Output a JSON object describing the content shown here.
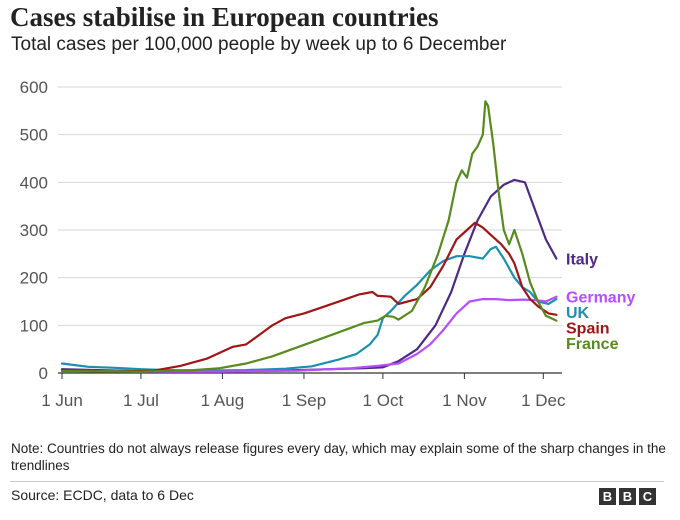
{
  "header": {
    "title": "Cases stabilise in European countries",
    "subtitle": "Total cases per 100,000 people by week up to 6 December"
  },
  "chart_data": {
    "type": "line",
    "title": "Cases stabilise in European countries",
    "subtitle": "Total cases per 100,000 people by week up to 6 December",
    "xlabel": "",
    "ylabel": "",
    "ylim": [
      0,
      600
    ],
    "yticks": [
      0,
      100,
      200,
      300,
      400,
      500,
      600
    ],
    "xlim": [
      0,
      188
    ],
    "xticks": [
      {
        "label": "1 Jun",
        "day": 0
      },
      {
        "label": "1 Jul",
        "day": 30
      },
      {
        "label": "1 Aug",
        "day": 61
      },
      {
        "label": "1 Sep",
        "day": 92
      },
      {
        "label": "1 Oct",
        "day": 122
      },
      {
        "label": "1 Nov",
        "day": 153
      },
      {
        "label": "1 Dec",
        "day": 183
      }
    ],
    "grid": true,
    "legend_placement": "right end of lines",
    "series": [
      {
        "name": "Italy",
        "color": "#4e2a84",
        "points": [
          [
            0,
            8
          ],
          [
            30,
            4
          ],
          [
            60,
            4
          ],
          [
            90,
            6
          ],
          [
            115,
            10
          ],
          [
            122,
            12
          ],
          [
            128,
            25
          ],
          [
            135,
            50
          ],
          [
            142,
            100
          ],
          [
            148,
            170
          ],
          [
            153,
            250
          ],
          [
            158,
            320
          ],
          [
            163,
            370
          ],
          [
            168,
            395
          ],
          [
            172,
            405
          ],
          [
            176,
            400
          ],
          [
            180,
            340
          ],
          [
            184,
            280
          ],
          [
            188,
            240
          ]
        ]
      },
      {
        "name": "UK",
        "color": "#1b8fb0",
        "points": [
          [
            0,
            20
          ],
          [
            10,
            13
          ],
          [
            20,
            11
          ],
          [
            30,
            8
          ],
          [
            40,
            6
          ],
          [
            55,
            5
          ],
          [
            70,
            6
          ],
          [
            85,
            9
          ],
          [
            95,
            14
          ],
          [
            105,
            28
          ],
          [
            112,
            40
          ],
          [
            117,
            60
          ],
          [
            120,
            80
          ],
          [
            122,
            115
          ],
          [
            125,
            130
          ],
          [
            130,
            160
          ],
          [
            135,
            185
          ],
          [
            140,
            215
          ],
          [
            145,
            235
          ],
          [
            150,
            245
          ],
          [
            155,
            245
          ],
          [
            160,
            240
          ],
          [
            163,
            260
          ],
          [
            165,
            265
          ],
          [
            168,
            240
          ],
          [
            172,
            200
          ],
          [
            175,
            180
          ],
          [
            178,
            170
          ],
          [
            181,
            150
          ],
          [
            185,
            145
          ],
          [
            188,
            155
          ]
        ]
      },
      {
        "name": "Germany",
        "color": "#b84dff",
        "points": [
          [
            0,
            5
          ],
          [
            30,
            3
          ],
          [
            60,
            3
          ],
          [
            90,
            5
          ],
          [
            110,
            10
          ],
          [
            120,
            15
          ],
          [
            128,
            20
          ],
          [
            135,
            40
          ],
          [
            140,
            60
          ],
          [
            145,
            90
          ],
          [
            150,
            125
          ],
          [
            155,
            150
          ],
          [
            160,
            155
          ],
          [
            165,
            155
          ],
          [
            170,
            153
          ],
          [
            175,
            154
          ],
          [
            180,
            153
          ],
          [
            184,
            150
          ],
          [
            188,
            160
          ]
        ]
      },
      {
        "name": "Spain",
        "color": "#a01515",
        "points": [
          [
            0,
            5
          ],
          [
            20,
            3
          ],
          [
            35,
            5
          ],
          [
            45,
            15
          ],
          [
            55,
            30
          ],
          [
            65,
            55
          ],
          [
            70,
            60
          ],
          [
            75,
            80
          ],
          [
            80,
            100
          ],
          [
            85,
            115
          ],
          [
            92,
            125
          ],
          [
            100,
            140
          ],
          [
            108,
            155
          ],
          [
            113,
            165
          ],
          [
            118,
            170
          ],
          [
            120,
            162
          ],
          [
            125,
            160
          ],
          [
            128,
            145
          ],
          [
            130,
            148
          ],
          [
            135,
            155
          ],
          [
            140,
            180
          ],
          [
            145,
            225
          ],
          [
            150,
            280
          ],
          [
            154,
            300
          ],
          [
            157,
            315
          ],
          [
            160,
            305
          ],
          [
            163,
            290
          ],
          [
            167,
            270
          ],
          [
            170,
            250
          ],
          [
            172,
            230
          ],
          [
            175,
            180
          ],
          [
            178,
            155
          ],
          [
            181,
            140
          ],
          [
            185,
            125
          ],
          [
            188,
            122
          ]
        ]
      },
      {
        "name": "France",
        "color": "#588b1e",
        "points": [
          [
            0,
            4
          ],
          [
            30,
            3
          ],
          [
            50,
            6
          ],
          [
            60,
            10
          ],
          [
            70,
            20
          ],
          [
            80,
            35
          ],
          [
            90,
            55
          ],
          [
            100,
            75
          ],
          [
            110,
            95
          ],
          [
            115,
            105
          ],
          [
            120,
            110
          ],
          [
            123,
            120
          ],
          [
            126,
            118
          ],
          [
            128,
            112
          ],
          [
            133,
            130
          ],
          [
            138,
            180
          ],
          [
            143,
            250
          ],
          [
            147,
            320
          ],
          [
            150,
            400
          ],
          [
            152,
            425
          ],
          [
            154,
            410
          ],
          [
            156,
            460
          ],
          [
            158,
            475
          ],
          [
            160,
            500
          ],
          [
            161,
            570
          ],
          [
            162,
            560
          ],
          [
            164,
            480
          ],
          [
            166,
            380
          ],
          [
            168,
            300
          ],
          [
            170,
            270
          ],
          [
            172,
            300
          ],
          [
            175,
            250
          ],
          [
            178,
            190
          ],
          [
            181,
            150
          ],
          [
            184,
            120
          ],
          [
            188,
            110
          ]
        ]
      }
    ]
  },
  "note": "Note: Countries do not always release figures every day, which may explain some of the sharp changes in the trendlines",
  "source": "Source: ECDC, data to 6 Dec",
  "logo": [
    "B",
    "B",
    "C"
  ]
}
